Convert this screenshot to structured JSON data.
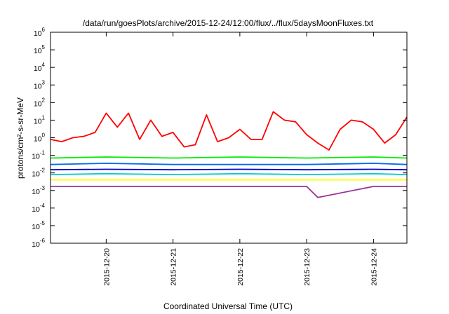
{
  "chart_data": {
    "type": "line",
    "title": "/data/run/goesPlots/archive/2015-12-24/12:00/flux/../flux/5daysMoonFluxes.txt",
    "xlabel": "Coordinated Universal Time (UTC)",
    "ylabel": "protons/cm²-s-sr-MeV",
    "yscale": "log",
    "ylim": [
      1e-06,
      1000000.0
    ],
    "xlim": [
      "2015-12-19T04:00",
      "2015-12-24T12:00"
    ],
    "y_ticks": [
      {
        "value": 1e-06,
        "exp": "-6"
      },
      {
        "value": 1e-05,
        "exp": "-5"
      },
      {
        "value": 0.0001,
        "exp": "-4"
      },
      {
        "value": 0.001,
        "exp": "-3"
      },
      {
        "value": 0.01,
        "exp": "-2"
      },
      {
        "value": 0.1,
        "exp": "-1"
      },
      {
        "value": 1,
        "exp": "0"
      },
      {
        "value": 10.0,
        "exp": "1"
      },
      {
        "value": 100.0,
        "exp": "2"
      },
      {
        "value": 1000.0,
        "exp": "3"
      },
      {
        "value": 10000.0,
        "exp": "4"
      },
      {
        "value": 100000.0,
        "exp": "5"
      },
      {
        "value": 1000000.0,
        "exp": "6"
      }
    ],
    "x_ticks": [
      "2015-12-20",
      "2015-12-21",
      "2015-12-22",
      "2015-12-23",
      "2015-12-24"
    ],
    "grid": false,
    "legend": "none",
    "series": [
      {
        "color": "#ff0000",
        "x": [
          "2015-12-19T04:00",
          "2015-12-19T08:00",
          "2015-12-19T12:00",
          "2015-12-19T16:00",
          "2015-12-19T20:00",
          "2015-12-20T00:00",
          "2015-12-20T04:00",
          "2015-12-20T08:00",
          "2015-12-20T12:00",
          "2015-12-20T16:00",
          "2015-12-20T20:00",
          "2015-12-21T00:00",
          "2015-12-21T04:00",
          "2015-12-21T08:00",
          "2015-12-21T12:00",
          "2015-12-21T16:00",
          "2015-12-21T20:00",
          "2015-12-22T00:00",
          "2015-12-22T04:00",
          "2015-12-22T08:00",
          "2015-12-22T12:00",
          "2015-12-22T16:00",
          "2015-12-22T20:00",
          "2015-12-23T00:00",
          "2015-12-23T04:00",
          "2015-12-23T08:00",
          "2015-12-23T12:00",
          "2015-12-23T16:00",
          "2015-12-23T20:00",
          "2015-12-24T00:00",
          "2015-12-24T04:00",
          "2015-12-24T08:00",
          "2015-12-24T12:00"
        ],
        "values": [
          0.8,
          0.6,
          1.0,
          1.2,
          2.0,
          25,
          4,
          25,
          0.8,
          10,
          1.2,
          2.0,
          0.3,
          0.4,
          20,
          0.6,
          1.0,
          3,
          0.8,
          0.8,
          30,
          10,
          8,
          1.5,
          0.5,
          0.2,
          3,
          10,
          8,
          3,
          0.5,
          1.5,
          15
        ]
      },
      {
        "color": "#00ee00",
        "x": [
          "2015-12-19T04:00",
          "2015-12-20T00:00",
          "2015-12-21T00:00",
          "2015-12-22T00:00",
          "2015-12-23T00:00",
          "2015-12-24T00:00",
          "2015-12-24T12:00"
        ],
        "values": [
          0.07,
          0.08,
          0.07,
          0.08,
          0.07,
          0.08,
          0.07
        ]
      },
      {
        "color": "#0066ff",
        "x": [
          "2015-12-19T04:00",
          "2015-12-20T00:00",
          "2015-12-21T00:00",
          "2015-12-22T00:00",
          "2015-12-23T00:00",
          "2015-12-24T00:00",
          "2015-12-24T12:00"
        ],
        "values": [
          0.03,
          0.035,
          0.03,
          0.03,
          0.03,
          0.035,
          0.03
        ]
      },
      {
        "color": "#0000cc",
        "x": [
          "2015-12-19T04:00",
          "2015-12-20T00:00",
          "2015-12-21T00:00",
          "2015-12-22T00:00",
          "2015-12-23T00:00",
          "2015-12-24T00:00",
          "2015-12-24T12:00"
        ],
        "values": [
          0.015,
          0.016,
          0.015,
          0.016,
          0.015,
          0.016,
          0.015
        ]
      },
      {
        "color": "#00cccc",
        "x": [
          "2015-12-19T04:00",
          "2015-12-20T00:00",
          "2015-12-21T00:00",
          "2015-12-22T00:00",
          "2015-12-23T00:00",
          "2015-12-24T00:00",
          "2015-12-24T12:00"
        ],
        "values": [
          0.008,
          0.009,
          0.008,
          0.009,
          0.008,
          0.009,
          0.008
        ]
      },
      {
        "color": "#ffff00",
        "x": [
          "2015-12-19T04:00",
          "2015-12-20T00:00",
          "2015-12-21T00:00",
          "2015-12-22T00:00",
          "2015-12-23T00:00",
          "2015-12-24T00:00",
          "2015-12-24T12:00"
        ],
        "values": [
          0.004,
          0.004,
          0.004,
          0.004,
          0.004,
          0.004,
          0.004
        ]
      },
      {
        "color": "#993399",
        "x": [
          "2015-12-19T04:00",
          "2015-12-20T00:00",
          "2015-12-21T00:00",
          "2015-12-22T00:00",
          "2015-12-23T00:00",
          "2015-12-23T04:00",
          "2015-12-24T00:00",
          "2015-12-24T12:00"
        ],
        "values": [
          0.0017,
          0.0017,
          0.0017,
          0.0017,
          0.0017,
          0.0004,
          0.0017,
          0.0017
        ]
      }
    ]
  }
}
